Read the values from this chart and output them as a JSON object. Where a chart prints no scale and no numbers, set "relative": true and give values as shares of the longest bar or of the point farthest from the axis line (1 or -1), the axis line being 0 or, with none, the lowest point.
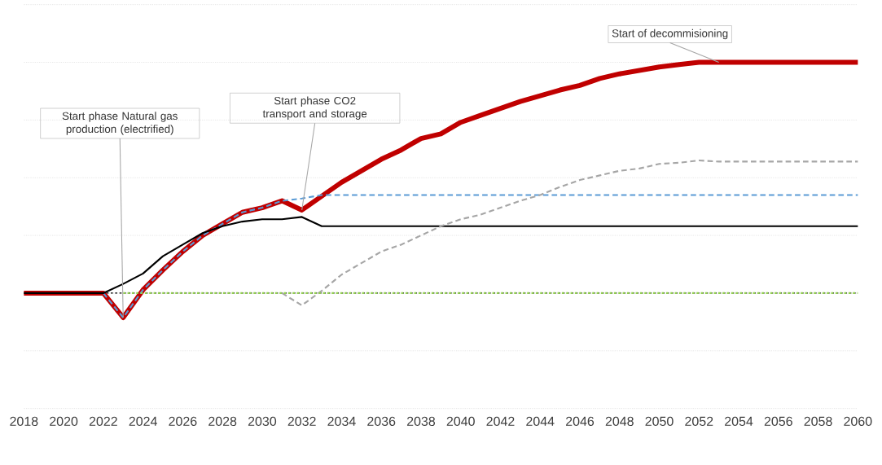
{
  "chart_data": {
    "type": "line",
    "relative": true,
    "grid": "y",
    "xlim": [
      2018,
      2060
    ],
    "xticks": [
      2018,
      2020,
      2022,
      2024,
      2026,
      2028,
      2030,
      2032,
      2034,
      2036,
      2038,
      2040,
      2042,
      2044,
      2046,
      2048,
      2050,
      2052,
      2054,
      2056,
      2058,
      2060
    ],
    "series": [
      {
        "color": "#c00000",
        "line_style": "solid",
        "x": [
          2018,
          2019,
          2020,
          2021,
          2022,
          2023,
          2024,
          2025,
          2026,
          2027,
          2028,
          2029,
          2030,
          2031,
          2032,
          2033,
          2034,
          2035,
          2036,
          2037,
          2038,
          2039,
          2040,
          2041,
          2042,
          2043,
          2044,
          2045,
          2046,
          2047,
          2048,
          2049,
          2050,
          2051,
          2052,
          2053,
          2054,
          2055,
          2056,
          2057,
          2058,
          2059,
          2060
        ],
        "values": [
          0,
          0,
          0,
          0,
          0,
          -0.106,
          0.014,
          0.1,
          0.18,
          0.25,
          0.3,
          0.35,
          0.37,
          0.4,
          0.36,
          0.42,
          0.48,
          0.53,
          0.58,
          0.62,
          0.67,
          0.69,
          0.74,
          0.77,
          0.8,
          0.83,
          0.855,
          0.88,
          0.9,
          0.93,
          0.95,
          0.965,
          0.98,
          0.99,
          1,
          1,
          1,
          1,
          1,
          1,
          1,
          1,
          1
        ]
      },
      {
        "color": "#5b9bd5",
        "line_style": "dashed",
        "x": [
          2022,
          2023,
          2024,
          2025,
          2026,
          2027,
          2028,
          2029,
          2030,
          2031,
          2032,
          2033,
          2034,
          2040,
          2050,
          2060
        ],
        "values": [
          0,
          -0.106,
          0.014,
          0.1,
          0.18,
          0.25,
          0.3,
          0.35,
          0.37,
          0.4,
          0.41,
          0.425,
          0.425,
          0.425,
          0.425,
          0.425
        ]
      },
      {
        "color": "#000000",
        "line_style": "solid",
        "x": [
          2018,
          2019,
          2020,
          2021,
          2022,
          2023,
          2024,
          2025,
          2026,
          2027,
          2028,
          2029,
          2030,
          2031,
          2032,
          2033,
          2040,
          2050,
          2060
        ],
        "values": [
          0,
          0,
          0,
          0,
          0,
          0.04,
          0.085,
          0.16,
          0.21,
          0.26,
          0.29,
          0.31,
          0.32,
          0.32,
          0.33,
          0.29,
          0.29,
          0.29,
          0.29
        ]
      },
      {
        "color": "#a6a6a6",
        "line_style": "dashed",
        "x": [
          2031,
          2032,
          2033,
          2034,
          2035,
          2036,
          2037,
          2038,
          2039,
          2040,
          2041,
          2042,
          2043,
          2044,
          2045,
          2046,
          2047,
          2048,
          2049,
          2050,
          2051,
          2052,
          2053,
          2060
        ],
        "values": [
          0,
          -0.053,
          0.01,
          0.08,
          0.13,
          0.18,
          0.21,
          0.25,
          0.29,
          0.32,
          0.34,
          0.37,
          0.4,
          0.425,
          0.46,
          0.49,
          0.51,
          0.53,
          0.54,
          0.56,
          0.565,
          0.575,
          0.57,
          0.57
        ]
      },
      {
        "color": "#92d050",
        "line_style": "dotted",
        "x": [
          2023,
          2030,
          2040,
          2050,
          2060
        ],
        "values": [
          0,
          0,
          0,
          0,
          0
        ]
      }
    ],
    "ref_lines": [
      {
        "axis": "y",
        "value": 0,
        "color": "#000000",
        "line_style": "dotted"
      }
    ],
    "annotations": [
      {
        "text": "Start phase Natural gas production (electrified)",
        "x": 2023,
        "y": -0.106
      },
      {
        "text": "Start phase CO2 transport and storage",
        "x": 2032,
        "y": 0.36
      },
      {
        "text": "Start of decommisioning",
        "x": 2053,
        "y": 1
      }
    ]
  }
}
